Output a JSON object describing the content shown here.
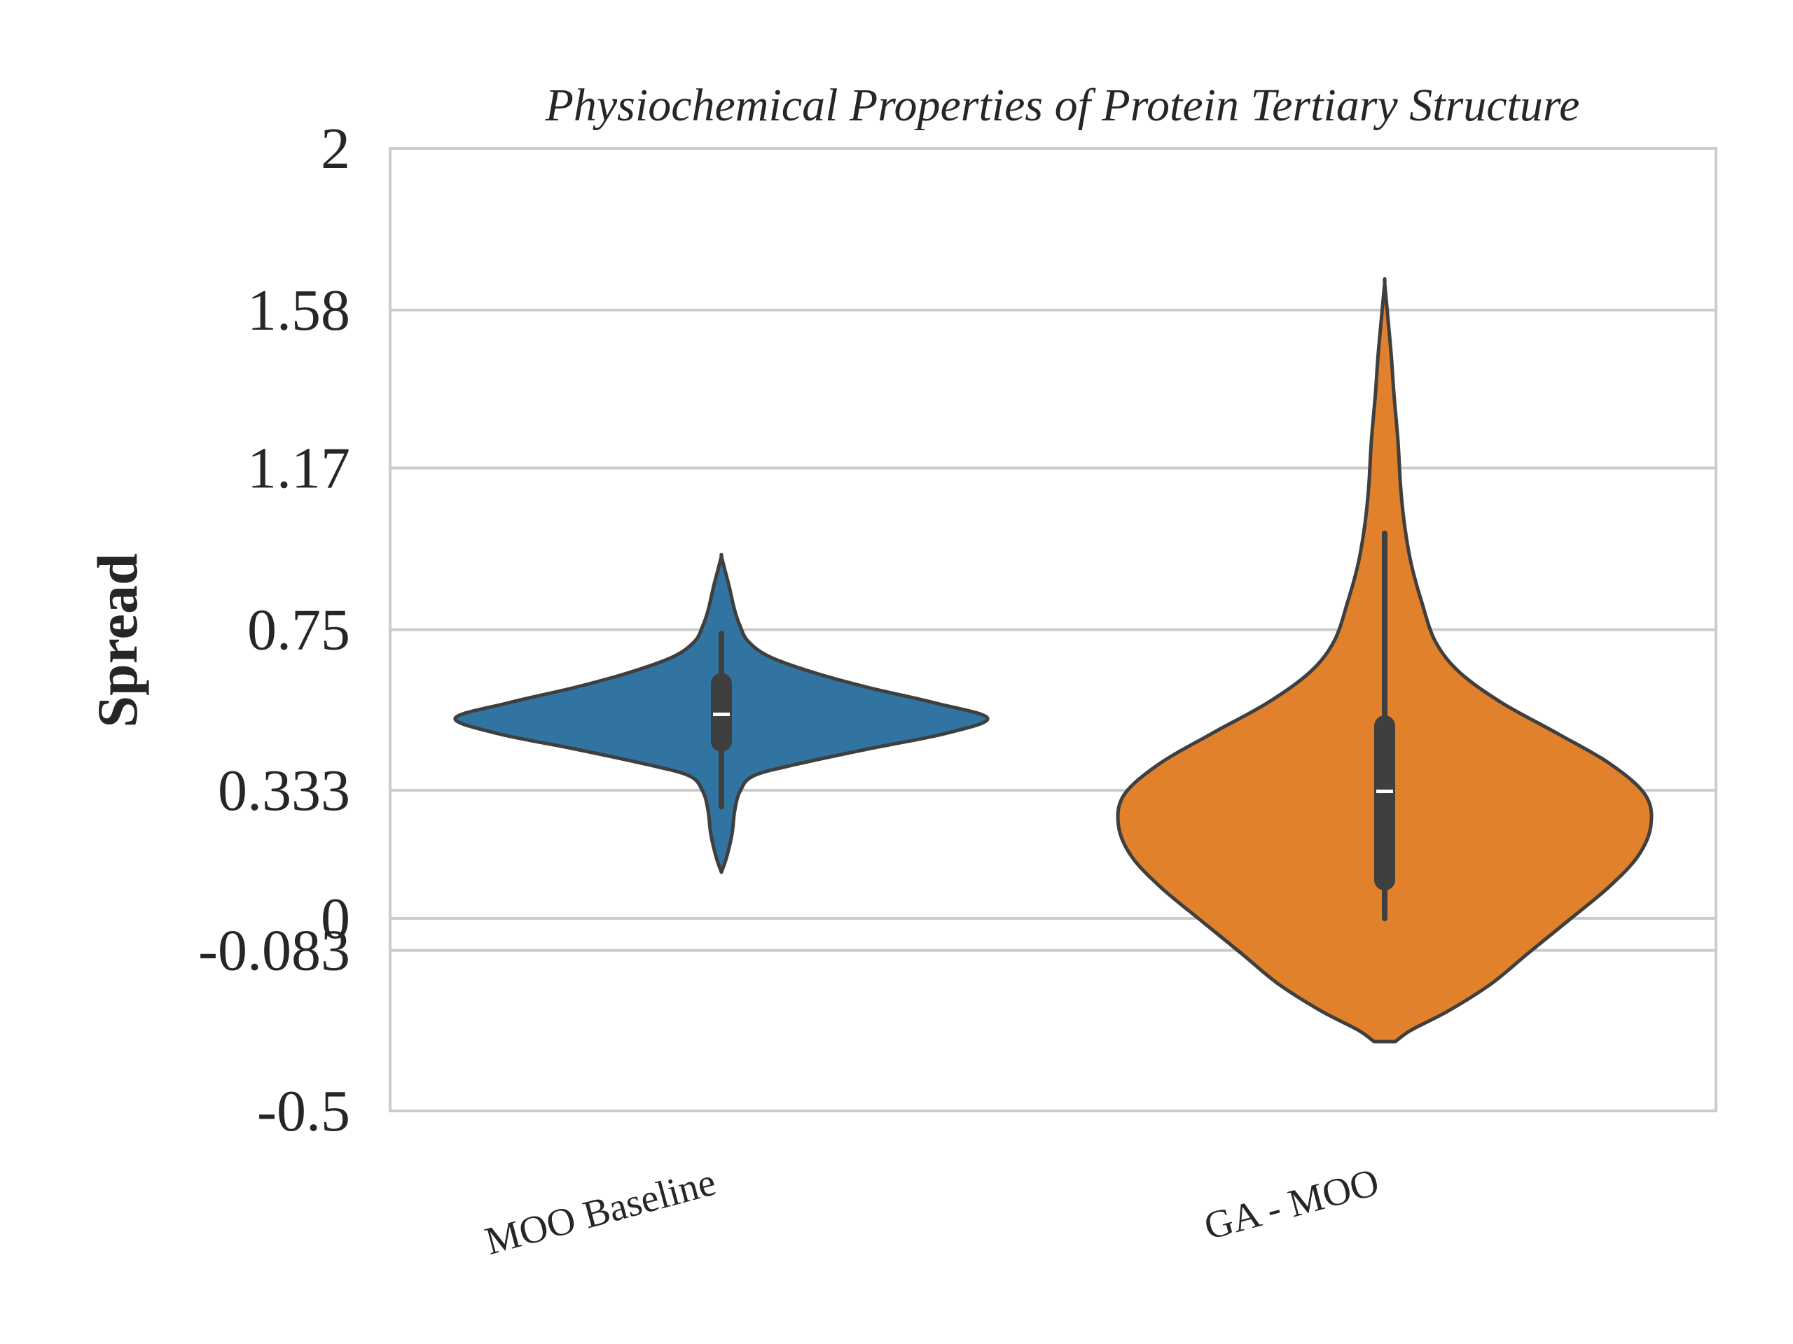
{
  "chart_data": {
    "type": "violin",
    "title": "Physiochemical Properties of Protein Tertiary Structure",
    "xlabel": "",
    "ylabel": "Spread",
    "ylim": [
      -0.5,
      2
    ],
    "yticks": [
      -0.5,
      -0.083,
      0,
      0.333,
      0.75,
      1.17,
      1.58,
      2
    ],
    "ytick_labels": [
      "-0.5",
      "-0.083",
      "0",
      "0.333",
      "0.75",
      "1.17",
      "1.58",
      "2"
    ],
    "categories": [
      "MOO Baseline",
      "GA - MOO"
    ],
    "grid": true,
    "series": [
      {
        "category": "MOO Baseline",
        "color": "#3274a1",
        "min": 0.12,
        "max": 0.94,
        "whisker_low": 0.29,
        "whisker_high": 0.74,
        "q1": 0.46,
        "q3": 0.61,
        "median": 0.53,
        "density": [
          [
            0.12,
            0.0
          ],
          [
            0.16,
            0.02
          ],
          [
            0.22,
            0.04
          ],
          [
            0.28,
            0.05
          ],
          [
            0.33,
            0.07
          ],
          [
            0.37,
            0.12
          ],
          [
            0.4,
            0.28
          ],
          [
            0.44,
            0.55
          ],
          [
            0.48,
            0.84
          ],
          [
            0.52,
            1.0
          ],
          [
            0.56,
            0.8
          ],
          [
            0.6,
            0.55
          ],
          [
            0.64,
            0.34
          ],
          [
            0.68,
            0.18
          ],
          [
            0.72,
            0.1
          ],
          [
            0.76,
            0.07
          ],
          [
            0.8,
            0.05
          ],
          [
            0.86,
            0.03
          ],
          [
            0.9,
            0.015
          ],
          [
            0.94,
            0.0
          ]
        ]
      },
      {
        "category": "GA - MOO",
        "color": "#e1812c",
        "min": -0.32,
        "max": 1.65,
        "whisker_low": 0.0,
        "whisker_high": 1.0,
        "q1": 0.1,
        "q3": 0.5,
        "median": 0.33,
        "density": [
          [
            -0.32,
            0.04
          ],
          [
            -0.29,
            0.1
          ],
          [
            -0.24,
            0.24
          ],
          [
            -0.17,
            0.4
          ],
          [
            -0.09,
            0.54
          ],
          [
            0.0,
            0.7
          ],
          [
            0.08,
            0.84
          ],
          [
            0.16,
            0.95
          ],
          [
            0.24,
            1.0
          ],
          [
            0.32,
            0.98
          ],
          [
            0.4,
            0.85
          ],
          [
            0.48,
            0.65
          ],
          [
            0.56,
            0.44
          ],
          [
            0.64,
            0.28
          ],
          [
            0.72,
            0.19
          ],
          [
            0.82,
            0.14
          ],
          [
            0.92,
            0.1
          ],
          [
            1.02,
            0.075
          ],
          [
            1.12,
            0.06
          ],
          [
            1.24,
            0.05
          ],
          [
            1.36,
            0.035
          ],
          [
            1.46,
            0.025
          ],
          [
            1.56,
            0.012
          ],
          [
            1.65,
            0.0
          ]
        ]
      }
    ]
  }
}
